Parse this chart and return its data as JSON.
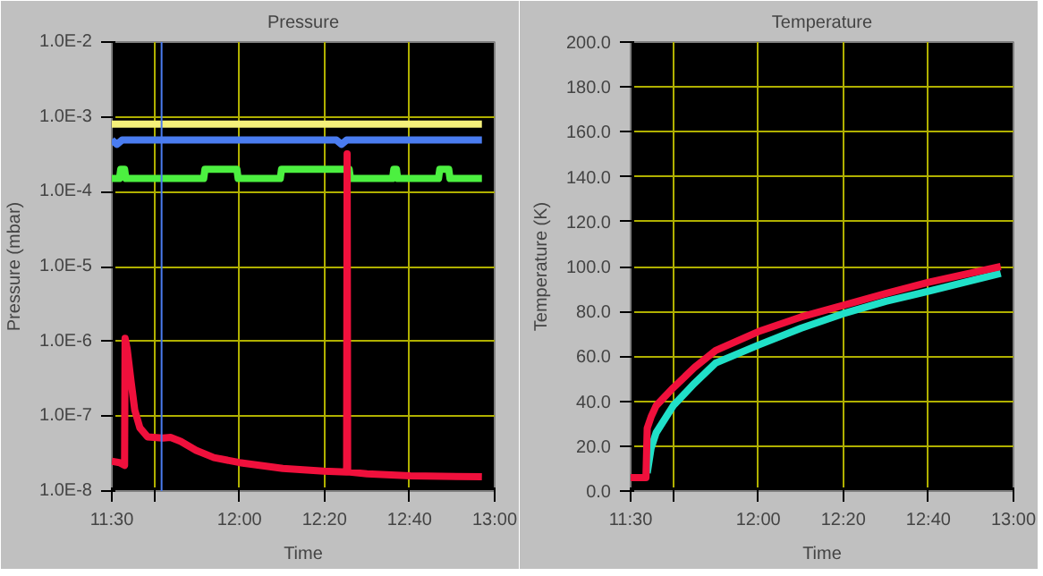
{
  "chart_data": [
    {
      "type": "line",
      "title": "Pressure",
      "xlabel": "Time",
      "ylabel": "Pressure (mbar)",
      "log": "y",
      "grid": true,
      "xlim": [
        11.5,
        13.0
      ],
      "xticks": [
        {
          "value": 11.5,
          "label": "11:30"
        },
        {
          "value": 11.6667,
          "label": null
        },
        {
          "value": 12.0,
          "label": "12:00"
        },
        {
          "value": 12.3333,
          "label": "12:20"
        },
        {
          "value": 12.6667,
          "label": "12:40"
        },
        {
          "value": 13.0,
          "label": "13:00"
        }
      ],
      "ylim": [
        1e-08,
        0.01
      ],
      "yticks": [
        {
          "value": 1e-08,
          "label": "1.0E-8"
        },
        {
          "value": 1e-07,
          "label": "1.0E-7"
        },
        {
          "value": 1e-06,
          "label": "1.0E-6"
        },
        {
          "value": 1e-05,
          "label": "1.0E-5"
        },
        {
          "value": 0.0001,
          "label": "1.0E-4"
        },
        {
          "value": 0.001,
          "label": "1.0E-3"
        },
        {
          "value": 0.01,
          "label": "1.0E-2"
        }
      ],
      "ref_lines": [
        {
          "axis": "x",
          "value": 11.695,
          "color": "#4a7cf0"
        }
      ],
      "series": [
        {
          "color": "#f5f07a",
          "x": [
            11.5,
            12.95
          ],
          "values": [
            0.0008,
            0.0008
          ]
        },
        {
          "color": "#4a7cf0",
          "x": [
            11.5,
            11.52,
            11.54,
            12.38,
            12.4,
            12.42,
            12.95
          ],
          "values": [
            0.00049,
            0.00043,
            0.00049,
            0.00049,
            0.00043,
            0.00049,
            0.00049
          ]
        },
        {
          "color": "#4cf040",
          "x": [
            11.5,
            11.53,
            11.535,
            11.55,
            11.555,
            11.86,
            11.865,
            11.99,
            11.995,
            12.16,
            12.165,
            12.28,
            12.285,
            12.43,
            12.435,
            12.6,
            12.605,
            12.615,
            12.62,
            12.78,
            12.785,
            12.82,
            12.825,
            12.95
          ],
          "values": [
            0.00015,
            0.00015,
            0.0002,
            0.0002,
            0.00015,
            0.00015,
            0.0002,
            0.0002,
            0.00015,
            0.00015,
            0.0002,
            0.0002,
            0.0002,
            0.0002,
            0.00015,
            0.00015,
            0.0002,
            0.0002,
            0.00015,
            0.00015,
            0.0002,
            0.0002,
            0.00015,
            0.00015
          ]
        },
        {
          "color": "#f0103c",
          "x": [
            11.5,
            11.53,
            11.55,
            11.552,
            11.56,
            11.575,
            11.59,
            11.61,
            11.64,
            11.7,
            11.73,
            11.77,
            11.83,
            11.9,
            12.0,
            12.17,
            12.33,
            12.42,
            12.422,
            12.424,
            12.5,
            12.67,
            12.95
          ],
          "values": [
            2.5e-08,
            2.4e-08,
            2.2e-08,
            1.1e-06,
            8e-07,
            3e-07,
            1.2e-07,
            7e-08,
            5.3e-08,
            5.1e-08,
            5.2e-08,
            4.6e-08,
            3.5e-08,
            2.8e-08,
            2.4e-08,
            2e-08,
            1.85e-08,
            1.8e-08,
            0.00032,
            1.8e-08,
            1.7e-08,
            1.6e-08,
            1.55e-08
          ]
        }
      ]
    },
    {
      "type": "line",
      "title": "Temperature",
      "xlabel": "Time",
      "ylabel": "Temperature (K)",
      "grid": true,
      "xlim": [
        11.5,
        13.0
      ],
      "xticks": [
        {
          "value": 11.5,
          "label": "11:30"
        },
        {
          "value": 11.6667,
          "label": null
        },
        {
          "value": 12.0,
          "label": "12:00"
        },
        {
          "value": 12.3333,
          "label": "12:20"
        },
        {
          "value": 12.6667,
          "label": "12:40"
        },
        {
          "value": 13.0,
          "label": "13:00"
        }
      ],
      "ylim": [
        0,
        200
      ],
      "yticks": [
        {
          "value": 0,
          "label": "0.0"
        },
        {
          "value": 20,
          "label": "20.0"
        },
        {
          "value": 40,
          "label": "40.0"
        },
        {
          "value": 60,
          "label": "60.0"
        },
        {
          "value": 80,
          "label": "80.0"
        },
        {
          "value": 100,
          "label": "100.0"
        },
        {
          "value": 120,
          "label": "120.0"
        },
        {
          "value": 140,
          "label": "140.0"
        },
        {
          "value": 160,
          "label": "160.0"
        },
        {
          "value": 180,
          "label": "180.0"
        },
        {
          "value": 200,
          "label": "200.0"
        }
      ],
      "series": [
        {
          "color": "#20e0c8",
          "x": [
            11.565,
            11.58,
            11.6,
            11.667,
            11.75,
            11.833,
            12.0,
            12.167,
            12.333,
            12.5,
            12.667,
            12.95
          ],
          "values": [
            8,
            19,
            26,
            38,
            48,
            57,
            65,
            72.5,
            79,
            84.5,
            89,
            97
          ]
        },
        {
          "color": "#f0103c",
          "x": [
            11.5,
            11.56,
            11.565,
            11.58,
            11.6,
            11.667,
            11.75,
            11.833,
            12.0,
            12.167,
            12.333,
            12.5,
            12.667,
            12.95
          ],
          "values": [
            6,
            6,
            28,
            33,
            38,
            46,
            55,
            62.6,
            71,
            77.5,
            82.7,
            88,
            93,
            100
          ]
        }
      ]
    }
  ]
}
